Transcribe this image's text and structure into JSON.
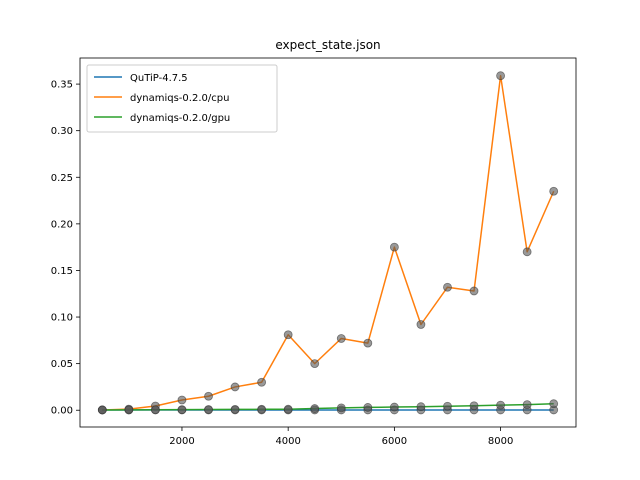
{
  "chart_data": {
    "type": "line",
    "title": "expect_state.json",
    "xlabel": "",
    "ylabel": "",
    "xlim": [
      80,
      9420
    ],
    "ylim": [
      -0.018,
      0.378
    ],
    "xticks": [
      2000,
      4000,
      6000,
      8000
    ],
    "xtick_labels": [
      "2000",
      "4000",
      "6000",
      "8000"
    ],
    "yticks": [
      0.0,
      0.05,
      0.1,
      0.15,
      0.2,
      0.25,
      0.3,
      0.35
    ],
    "ytick_labels": [
      "0.00",
      "0.05",
      "0.10",
      "0.15",
      "0.20",
      "0.25",
      "0.30",
      "0.35"
    ],
    "grid": false,
    "legend_position": "top-left",
    "markers": "gray circles on every point",
    "x": [
      500,
      1000,
      1500,
      2000,
      2500,
      3000,
      3500,
      4000,
      4500,
      5000,
      5500,
      6000,
      6500,
      7000,
      7500,
      8000,
      8500,
      9000
    ],
    "series": [
      {
        "name": "QuTiP-4.7.5",
        "color": "#1f77b4",
        "values": [
          0.0003,
          0.0003,
          0.0003,
          0.0003,
          0.0003,
          0.0003,
          0.0003,
          0.0003,
          0.0003,
          0.0003,
          0.0003,
          0.0003,
          0.0003,
          0.0003,
          0.0003,
          0.0003,
          0.0003,
          0.0003
        ]
      },
      {
        "name": "dynamiqs-0.2.0/cpu",
        "color": "#ff7f0e",
        "values": [
          0.0003,
          0.0012,
          0.0045,
          0.011,
          0.015,
          0.025,
          0.03,
          0.081,
          0.05,
          0.077,
          0.072,
          0.175,
          0.092,
          0.132,
          0.128,
          0.359,
          0.17,
          0.235
        ]
      },
      {
        "name": "dynamiqs-0.2.0/gpu",
        "color": "#2ca02c",
        "values": [
          0.0003,
          0.0004,
          0.0005,
          0.0006,
          0.0008,
          0.0009,
          0.001,
          0.0011,
          0.0018,
          0.0025,
          0.003,
          0.0034,
          0.0038,
          0.0043,
          0.0048,
          0.0055,
          0.006,
          0.007
        ]
      }
    ]
  }
}
